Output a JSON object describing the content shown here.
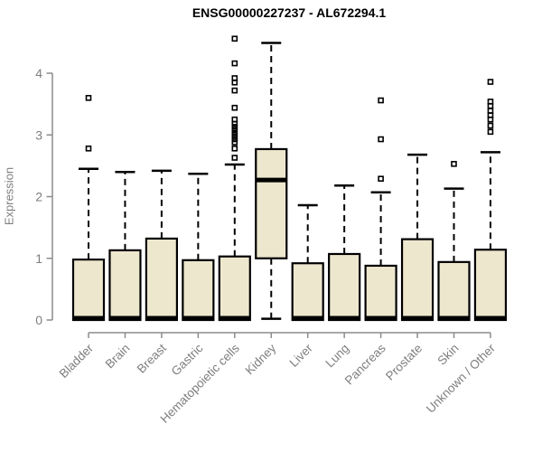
{
  "title": "ENSG00000227237 - AL672294.1",
  "chart_data": {
    "type": "boxplot",
    "title": "ENSG00000227237 - AL672294.1",
    "xlabel": "",
    "ylabel": "Expression",
    "ylim": [
      0,
      4.6
    ],
    "yticks": [
      0,
      1,
      2,
      3,
      4
    ],
    "ytick_labels": [
      "0",
      "1",
      "2",
      "3",
      "4"
    ],
    "grid": false,
    "legend": "none",
    "colors": {
      "box_fill": "#ede7ce",
      "box_stroke": "#000000",
      "median": "#000000",
      "whisker": "#000000",
      "outlier_stroke": "#000000",
      "axis": "#8c8c8c",
      "tick_label": "#7e7e7e",
      "title": "#000000",
      "background": "#ffffff"
    },
    "categories": [
      "Bladder",
      "Brain",
      "Breast",
      "Gastric",
      "Hematopoietic cells",
      "Kidney",
      "Liver",
      "Lung",
      "Pancreas",
      "Prostate",
      "Skin",
      "Unknown / Other"
    ],
    "series": [
      {
        "category": "Bladder",
        "low": 0.02,
        "q1": 0.0,
        "median": 0.03,
        "q3": 0.98,
        "high": 2.45,
        "outliers": [
          2.78,
          3.6
        ]
      },
      {
        "category": "Brain",
        "low": 0.02,
        "q1": 0.0,
        "median": 0.03,
        "q3": 1.13,
        "high": 2.4,
        "outliers": []
      },
      {
        "category": "Breast",
        "low": 0.02,
        "q1": 0.0,
        "median": 0.03,
        "q3": 1.32,
        "high": 2.42,
        "outliers": []
      },
      {
        "category": "Gastric",
        "low": 0.02,
        "q1": 0.0,
        "median": 0.03,
        "q3": 0.97,
        "high": 2.37,
        "outliers": []
      },
      {
        "category": "Hematopoietic cells",
        "low": 0.02,
        "q1": 0.0,
        "median": 0.03,
        "q3": 1.03,
        "high": 2.52,
        "outliers": [
          2.63,
          2.78,
          2.88,
          2.93,
          2.98,
          3.03,
          3.08,
          3.13,
          3.18,
          3.25,
          3.44,
          3.72,
          3.85,
          3.92,
          4.16,
          4.56
        ]
      },
      {
        "category": "Kidney",
        "low": 0.02,
        "q1": 1.0,
        "median": 2.27,
        "q3": 2.77,
        "high": 4.49,
        "outliers": []
      },
      {
        "category": "Liver",
        "low": 0.02,
        "q1": 0.0,
        "median": 0.03,
        "q3": 0.92,
        "high": 1.86,
        "outliers": []
      },
      {
        "category": "Lung",
        "low": 0.02,
        "q1": 0.0,
        "median": 0.03,
        "q3": 1.07,
        "high": 2.18,
        "outliers": []
      },
      {
        "category": "Pancreas",
        "low": 0.02,
        "q1": 0.0,
        "median": 0.03,
        "q3": 0.88,
        "high": 2.07,
        "outliers": [
          2.29,
          2.93,
          3.56
        ]
      },
      {
        "category": "Prostate",
        "low": 0.02,
        "q1": 0.0,
        "median": 0.03,
        "q3": 1.31,
        "high": 2.68,
        "outliers": []
      },
      {
        "category": "Skin",
        "low": 0.02,
        "q1": 0.0,
        "median": 0.03,
        "q3": 0.94,
        "high": 2.13,
        "outliers": [
          2.53
        ]
      },
      {
        "category": "Unknown / Other",
        "low": 0.02,
        "q1": 0.0,
        "median": 0.03,
        "q3": 1.14,
        "high": 2.72,
        "outliers": [
          3.05,
          3.15,
          3.25,
          3.32,
          3.39,
          3.47,
          3.54,
          3.86
        ]
      }
    ]
  }
}
